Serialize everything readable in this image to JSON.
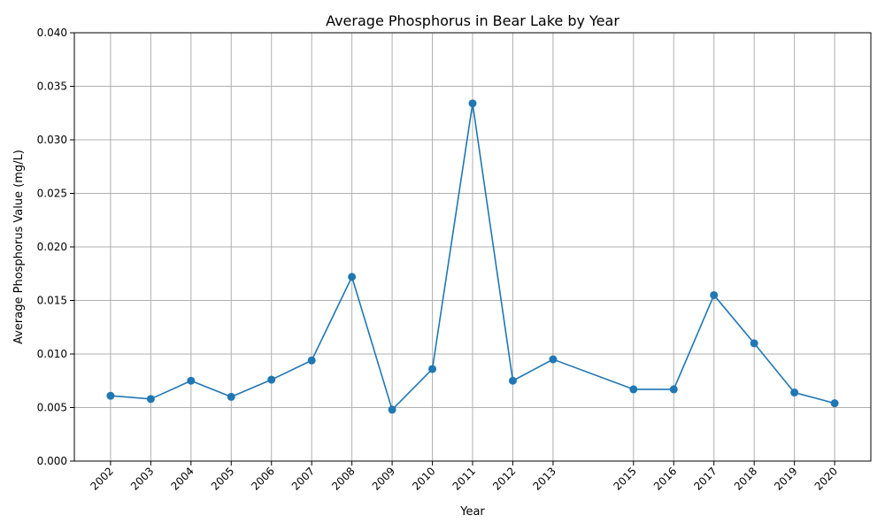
{
  "chart_data": {
    "type": "line",
    "title": "Average Phosphorus in Bear Lake by Year",
    "xlabel": "Year",
    "ylabel": "Average Phosphorus Value (mg/L)",
    "xlim": [
      2001.1,
      2020.9
    ],
    "ylim": [
      0.0,
      0.04
    ],
    "grid": true,
    "marker": "circle",
    "color": "#1f77b4",
    "x_ticks": [
      "2002",
      "2003",
      "2004",
      "2005",
      "2006",
      "2007",
      "2008",
      "2009",
      "2010",
      "2011",
      "2012",
      "2013",
      "2015",
      "2016",
      "2017",
      "2018",
      "2019",
      "2020"
    ],
    "y_ticks": [
      "0.000",
      "0.005",
      "0.010",
      "0.015",
      "0.020",
      "0.025",
      "0.030",
      "0.035",
      "0.040"
    ],
    "series": [
      {
        "x": [
          2002,
          2003,
          2004,
          2005,
          2006,
          2007,
          2008,
          2009,
          2010,
          2011,
          2012,
          2013,
          2015,
          2016,
          2017,
          2018,
          2019,
          2020
        ],
        "values": [
          0.0061,
          0.0058,
          0.0075,
          0.006,
          0.0076,
          0.0094,
          0.0172,
          0.0048,
          0.0086,
          0.0334,
          0.0075,
          0.0095,
          0.0067,
          0.0067,
          0.0155,
          0.011,
          0.0064,
          0.0054
        ]
      }
    ]
  }
}
